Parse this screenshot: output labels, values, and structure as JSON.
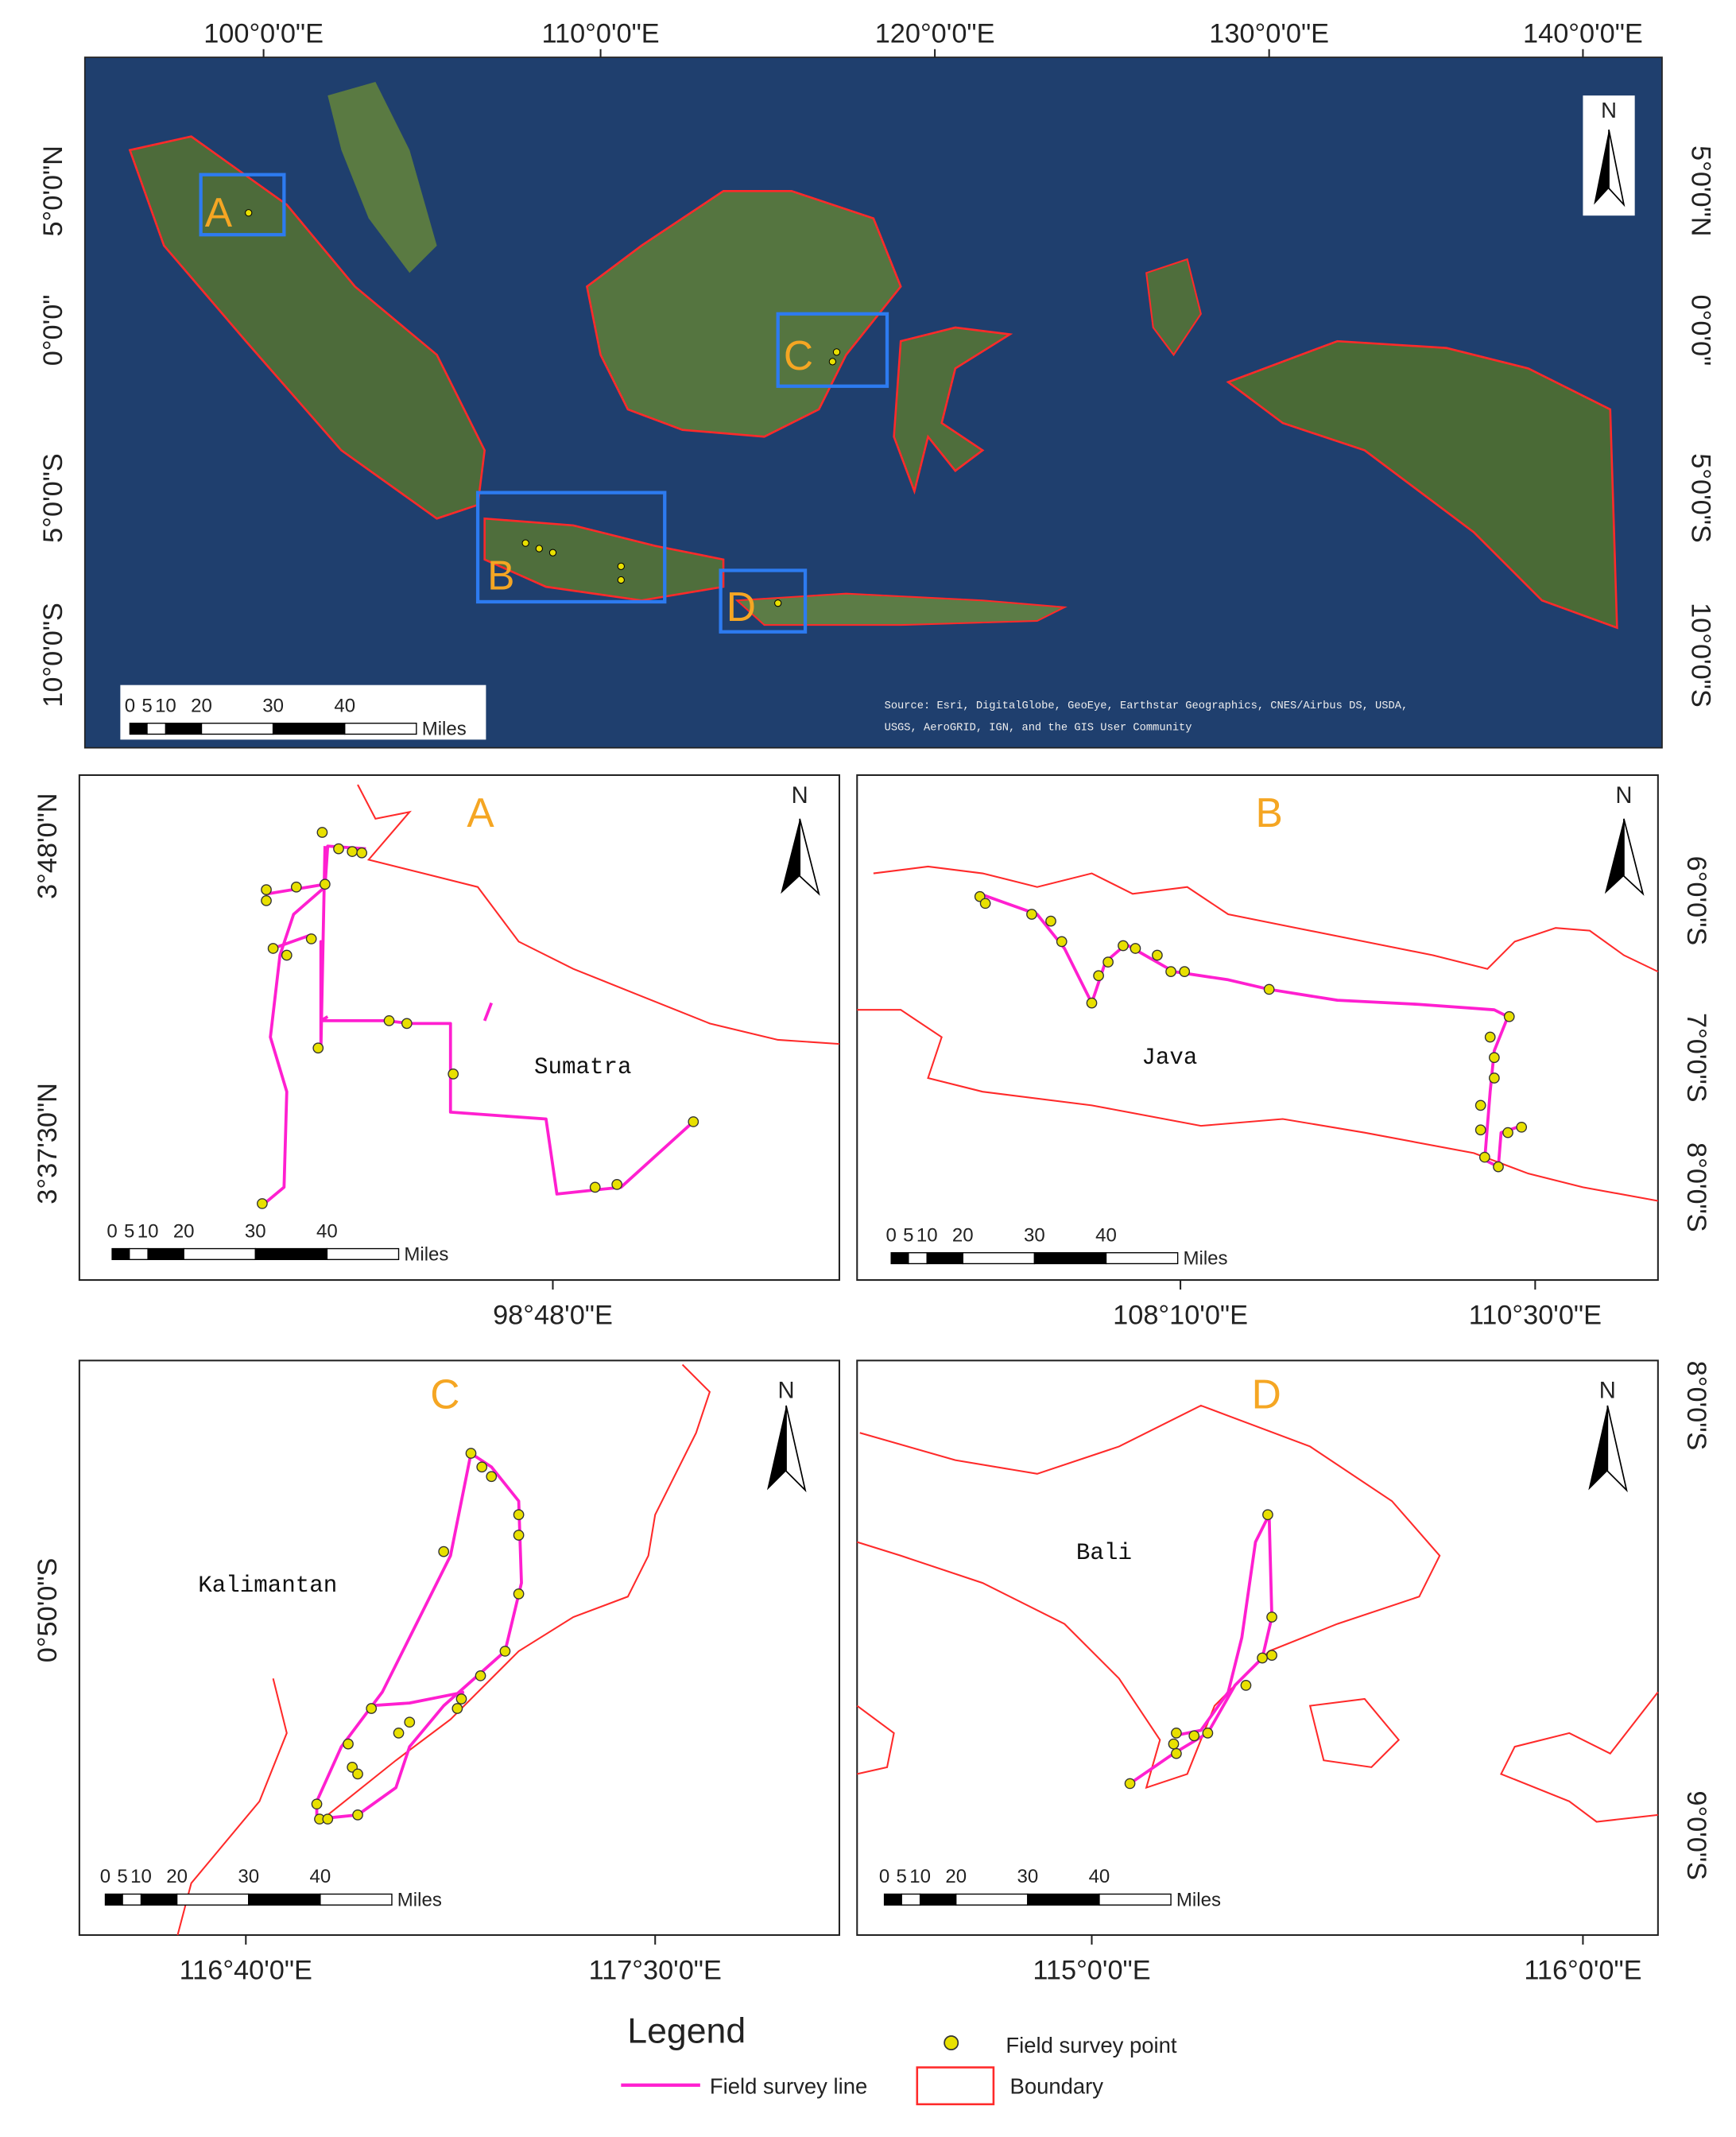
{
  "main_map": {
    "x_labels": [
      "100°0'0\"E",
      "110°0'0\"E",
      "120°0'0\"E",
      "130°0'0\"E",
      "140°0'0\"E"
    ],
    "y_labels_left": [
      "5°0'0\"N",
      "0°0'0\"",
      "5°0'0\"S",
      "10°0'0\"S"
    ],
    "y_labels_right": [
      "5°0'0\"N",
      "0°0'0\"",
      "5°0'0\"S",
      "10°0'0\"S"
    ],
    "north": "N",
    "boxes": [
      "A",
      "B",
      "C",
      "D"
    ],
    "scale": {
      "ticks": [
        "0",
        "5",
        "10",
        "20",
        "30",
        "40"
      ],
      "unit": "Miles"
    },
    "source": [
      "Source: Esri, DigitalGlobe, GeoEye, Earthstar Geographics, CNES/Airbus DS, USDA,",
      "USGS, AeroGRID, IGN, and the GIS User Community"
    ]
  },
  "panels": [
    {
      "label": "A",
      "place": "Sumatra",
      "north": "N",
      "x_labels": [
        "98°48'0\"E"
      ],
      "y_labels": [
        "3°48'0\"N",
        "3°37'30\"N"
      ],
      "scale": {
        "ticks": [
          "0",
          "5",
          "10",
          "20",
          "30",
          "40"
        ],
        "unit": "Miles"
      }
    },
    {
      "label": "B",
      "place": "Java",
      "north": "N",
      "x_labels": [
        "108°10'0\"E",
        "110°30'0\"E"
      ],
      "y_labels": [
        "6°0'0\"S",
        "7°0'0\"S",
        "8°0'0\"S"
      ],
      "scale": {
        "ticks": [
          "0",
          "5",
          "10",
          "20",
          "30",
          "40"
        ],
        "unit": "Miles"
      }
    },
    {
      "label": "C",
      "place": "Kalimantan",
      "north": "N",
      "x_labels": [
        "116°40'0\"E",
        "117°30'0\"E"
      ],
      "y_labels": [
        "0°50'0\"S"
      ],
      "scale": {
        "ticks": [
          "0",
          "5",
          "10",
          "20",
          "30",
          "40"
        ],
        "unit": "Miles"
      }
    },
    {
      "label": "D",
      "place": "Bali",
      "north": "N",
      "x_labels": [
        "115°0'0\"E",
        "116°0'0\"E"
      ],
      "y_labels": [
        "8°0'0\"S",
        "9°0'0\"S"
      ],
      "scale": {
        "ticks": [
          "0",
          "5",
          "10",
          "20",
          "30",
          "40"
        ],
        "unit": "Miles"
      }
    }
  ],
  "legend": {
    "title": "Legend",
    "items": [
      "Field survey point",
      "Field survey line",
      "Boundary"
    ]
  }
}
